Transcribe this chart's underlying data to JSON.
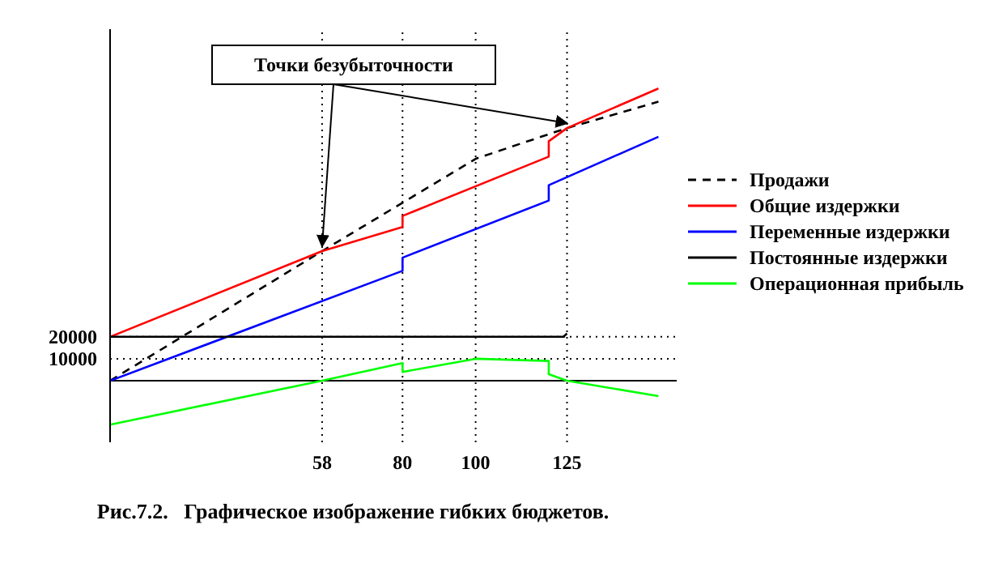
{
  "chart_data": {
    "type": "line",
    "xlim": [
      0,
      155
    ],
    "ylim": [
      -28000,
      160000
    ],
    "xticks": [
      58,
      80,
      100,
      125
    ],
    "yticks": [
      10000,
      20000
    ],
    "grid": false,
    "legend": "right",
    "marker": "none",
    "series": [
      {
        "name": "Продажи",
        "color": "#000000",
        "line_style": "dashed",
        "x": [
          0,
          58,
          80,
          100,
          125,
          150
        ],
        "values": [
          0,
          59000,
          81000,
          101000,
          115000,
          127000
        ]
      },
      {
        "name": "Общие издержки",
        "color": "#ff0000",
        "line_style": "solid",
        "x": [
          0,
          58,
          80,
          80,
          120,
          120,
          125,
          150
        ],
        "values": [
          20000,
          59000,
          70000,
          75000,
          102000,
          109000,
          115000,
          133000
        ]
      },
      {
        "name": "Переменные издержки",
        "color": "#0000ff",
        "line_style": "solid",
        "x": [
          0,
          80,
          80,
          120,
          120,
          150
        ],
        "values": [
          0,
          50000,
          56000,
          82000,
          89000,
          111000
        ]
      },
      {
        "name": "Постоянные издержки",
        "color": "#000000",
        "line_style": "solid",
        "x": [
          0,
          124,
          125
        ],
        "values": [
          20000,
          20000,
          21500
        ]
      },
      {
        "name": "Операционная прибыль",
        "color": "#00ff00",
        "line_style": "solid",
        "x": [
          0,
          58,
          80,
          80,
          100,
          120,
          120,
          125,
          150
        ],
        "values": [
          -20000,
          0,
          8000,
          4000,
          10000,
          9000,
          3000,
          0,
          -7000
        ]
      }
    ],
    "ref_lines": [
      {
        "axis": "y",
        "value": 0,
        "line_style": "solid"
      },
      {
        "axis": "x",
        "value": 58,
        "line_style": "dotted"
      },
      {
        "axis": "x",
        "value": 80,
        "line_style": "dotted"
      },
      {
        "axis": "x",
        "value": 100,
        "line_style": "dotted"
      },
      {
        "axis": "x",
        "value": 125,
        "line_style": "dotted"
      },
      {
        "axis": "y",
        "value": 10000,
        "line_style": "dotted"
      },
      {
        "axis": "y",
        "value": 20000,
        "line_style": "dotted"
      }
    ],
    "annotations": [
      {
        "text": "Точки безубыточности",
        "x": 58,
        "y": 59000
      },
      "Рис.7.2.   Графическое изображение гибких бюджетов."
    ]
  }
}
